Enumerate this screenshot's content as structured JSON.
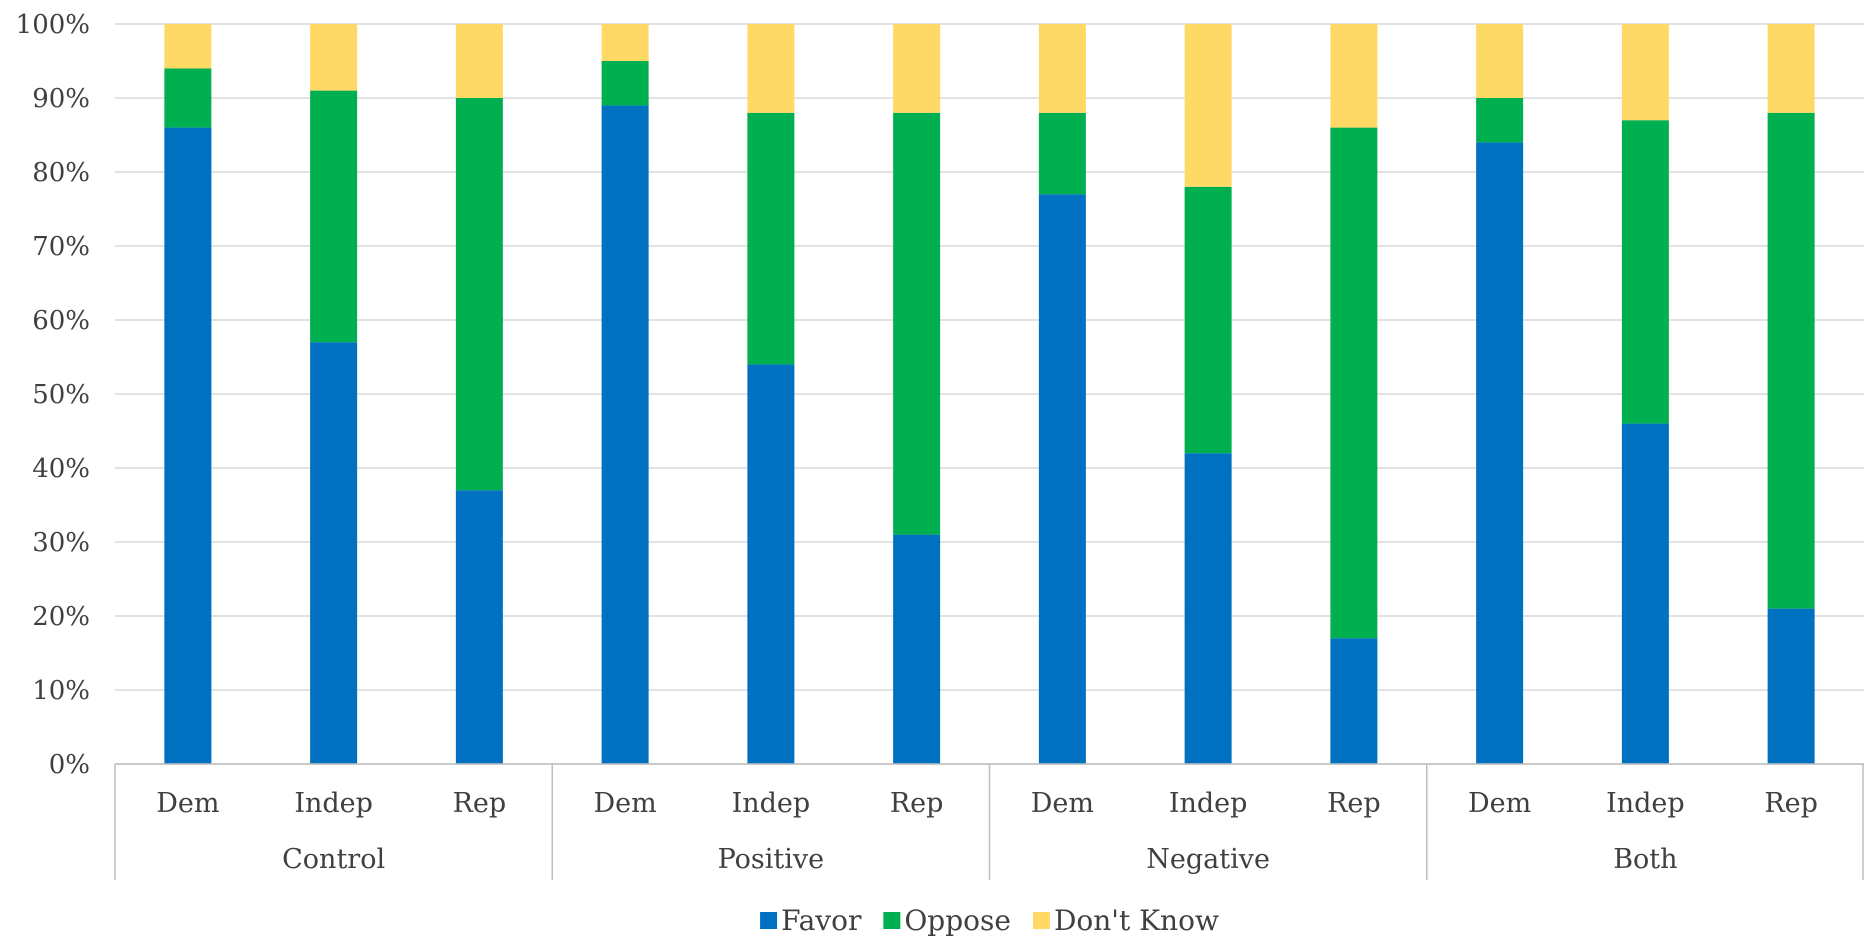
{
  "chart_data": {
    "type": "bar",
    "stacked": true,
    "percent_stacked": true,
    "groups": [
      "Control",
      "Positive",
      "Negative",
      "Both"
    ],
    "subcategories": [
      "Dem",
      "Indep",
      "Rep"
    ],
    "categories": [
      "Control Dem",
      "Control Indep",
      "Control Rep",
      "Positive Dem",
      "Positive Indep",
      "Positive Rep",
      "Negative Dem",
      "Negative Indep",
      "Negative Rep",
      "Both Dem",
      "Both Indep",
      "Both Rep"
    ],
    "series": [
      {
        "name": "Favor",
        "color": "#0070C0",
        "values": [
          86,
          57,
          37,
          89,
          54,
          31,
          77,
          42,
          17,
          84,
          46,
          21
        ]
      },
      {
        "name": "Oppose",
        "color": "#00B050",
        "values": [
          8,
          34,
          53,
          6,
          34,
          57,
          11,
          36,
          69,
          6,
          41,
          67
        ]
      },
      {
        "name": "Don't Know",
        "color": "#FFD966",
        "values": [
          6,
          9,
          10,
          5,
          12,
          12,
          12,
          22,
          14,
          10,
          13,
          12
        ]
      }
    ],
    "yticks": [
      "0%",
      "10%",
      "20%",
      "30%",
      "40%",
      "50%",
      "60%",
      "70%",
      "80%",
      "90%",
      "100%"
    ],
    "ylim": [
      0,
      100
    ],
    "grid": true,
    "legend_position": "bottom",
    "title": "",
    "xlabel": "",
    "ylabel": ""
  }
}
